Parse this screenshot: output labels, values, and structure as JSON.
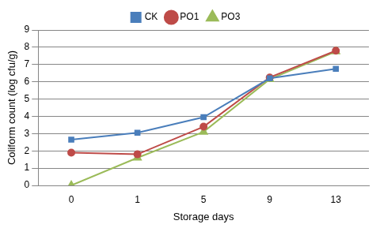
{
  "chart_data": {
    "type": "line",
    "x_label": "Storage days",
    "y_label": "Coliform count (log cfu/g)",
    "categories": [
      "0",
      "1",
      "5",
      "9",
      "13"
    ],
    "series": [
      {
        "name": "CK",
        "color": "#4a7ebb",
        "marker": "square",
        "values": [
          2.65,
          3.05,
          3.95,
          6.2,
          6.75
        ]
      },
      {
        "name": "PO1",
        "color": "#be4b48",
        "marker": "circle",
        "values": [
          1.9,
          1.8,
          3.4,
          6.25,
          7.8
        ]
      },
      {
        "name": "PO3",
        "color": "#9bbb59",
        "marker": "triangle",
        "values": [
          0,
          1.6,
          3.1,
          6.15,
          7.75
        ]
      }
    ],
    "ylim": [
      0,
      9
    ],
    "yticks": [
      0,
      1,
      2,
      3,
      4,
      5,
      6,
      7,
      8,
      9
    ],
    "grid": true,
    "legend": "top"
  }
}
